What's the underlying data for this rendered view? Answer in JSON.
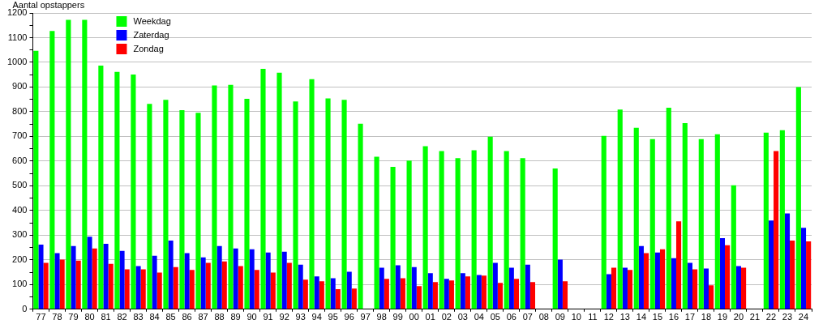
{
  "chart_data": {
    "type": "bar",
    "ylabel": "Aantal opstappers",
    "categories": [
      "77",
      "78",
      "79",
      "80",
      "81",
      "82",
      "83",
      "84",
      "85",
      "86",
      "87",
      "88",
      "89",
      "90",
      "91",
      "92",
      "93",
      "94",
      "95",
      "96",
      "97",
      "98",
      "99",
      "00",
      "01",
      "02",
      "03",
      "04",
      "05",
      "06",
      "07",
      "08",
      "09",
      "10",
      "11",
      "12",
      "13",
      "14",
      "15",
      "16",
      "17",
      "18",
      "19",
      "20",
      "21",
      "22",
      "23",
      "24"
    ],
    "series": [
      {
        "name": "Weekdag",
        "color": "#00ff00",
        "values": [
          1047,
          1127,
          1172,
          1172,
          987,
          961,
          951,
          832,
          848,
          806,
          796,
          906,
          909,
          852,
          974,
          958,
          842,
          932,
          854,
          848,
          751,
          618,
          577,
          602,
          660,
          641,
          612,
          644,
          699,
          641,
          612,
          null,
          570,
          null,
          null,
          702,
          809,
          735,
          689,
          816,
          754,
          689,
          709,
          502,
          null,
          715,
          725,
          900
        ]
      },
      {
        "name": "Zaterdag",
        "color": "#0000ff",
        "values": [
          262,
          227,
          256,
          294,
          265,
          236,
          175,
          217,
          278,
          227,
          210,
          256,
          246,
          243,
          230,
          233,
          181,
          133,
          126,
          152,
          null,
          168,
          178,
          171,
          146,
          123,
          146,
          139,
          188,
          168,
          181,
          null,
          201,
          null,
          null,
          142,
          168,
          256,
          230,
          207,
          188,
          165,
          288,
          175,
          null,
          359,
          388,
          330
        ]
      },
      {
        "name": "Zondag",
        "color": "#ff0000",
        "values": [
          188,
          201,
          197,
          246,
          184,
          162,
          162,
          149,
          171,
          159,
          188,
          194,
          175,
          159,
          149,
          188,
          120,
          113,
          81,
          84,
          null,
          123,
          126,
          94,
          110,
          117,
          133,
          136,
          107,
          123,
          110,
          null,
          113,
          null,
          null,
          168,
          159,
          227,
          243,
          356,
          162,
          97,
          259,
          168,
          null,
          641,
          278,
          275
        ]
      }
    ],
    "ylim": [
      0,
      1200
    ],
    "yticks": [
      0,
      {
        "value": 50,
        "label": null
      },
      100,
      {
        "value": 150,
        "label": null
      },
      200,
      {
        "value": 250,
        "label": null
      },
      300,
      {
        "value": 350,
        "label": null
      },
      400,
      {
        "value": 450,
        "label": null
      },
      500,
      {
        "value": 550,
        "label": null
      },
      600,
      {
        "value": 650,
        "label": null
      },
      700,
      {
        "value": 750,
        "label": null
      },
      800,
      {
        "value": 850,
        "label": null
      },
      900,
      {
        "value": 950,
        "label": null
      },
      1000,
      {
        "value": 1050,
        "label": null
      },
      1100,
      {
        "value": 1150,
        "label": null
      },
      1200
    ],
    "grid": "y",
    "legend": "top left"
  }
}
